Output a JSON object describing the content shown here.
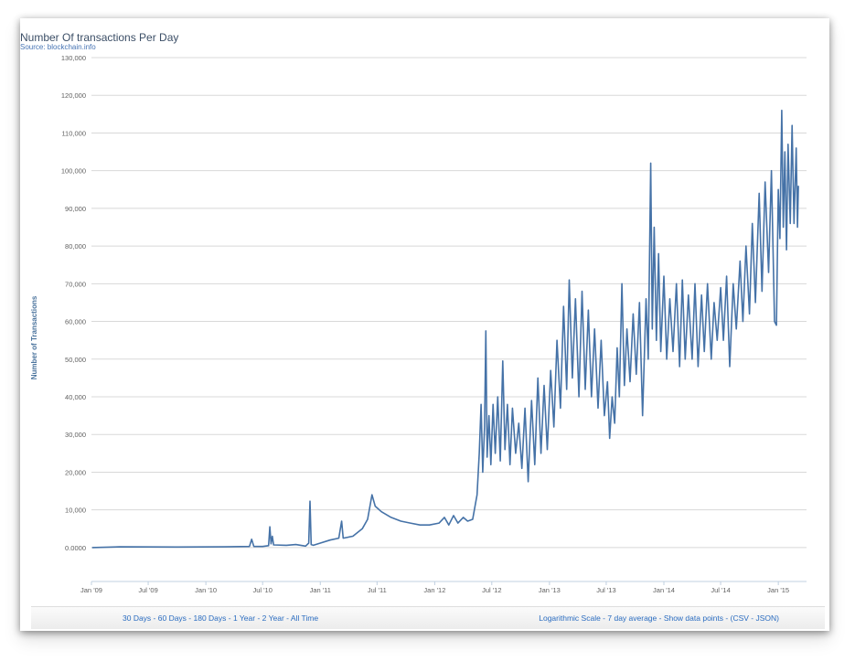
{
  "chart_data": {
    "type": "line",
    "title": "Number Of transactions Per Day",
    "subtitle": "Source: blockchain.info",
    "ylabel": "Number of Transactions",
    "xlabel": "",
    "ylim": [
      -9000,
      130000
    ],
    "grid": true,
    "y_ticks": [
      {
        "value": 0,
        "label": "0.0000"
      },
      {
        "value": 10000,
        "label": "10,000"
      },
      {
        "value": 20000,
        "label": "20,000"
      },
      {
        "value": 30000,
        "label": "30,000"
      },
      {
        "value": 40000,
        "label": "40,000"
      },
      {
        "value": 50000,
        "label": "50,000"
      },
      {
        "value": 60000,
        "label": "60,000"
      },
      {
        "value": 70000,
        "label": "70,000"
      },
      {
        "value": 80000,
        "label": "80,000"
      },
      {
        "value": 90000,
        "label": "90,000"
      },
      {
        "value": 100000,
        "label": "100,000"
      },
      {
        "value": 110000,
        "label": "110,000"
      },
      {
        "value": 120000,
        "label": "120,000"
      },
      {
        "value": 130000,
        "label": "130,000"
      }
    ],
    "x_ticks": [
      {
        "date": "2009-01-01",
        "label": "Jan '09"
      },
      {
        "date": "2009-07-01",
        "label": "Jul '09"
      },
      {
        "date": "2010-01-01",
        "label": "Jan '10"
      },
      {
        "date": "2010-07-01",
        "label": "Jul '10"
      },
      {
        "date": "2011-01-01",
        "label": "Jan '11"
      },
      {
        "date": "2011-07-01",
        "label": "Jul '11"
      },
      {
        "date": "2012-01-01",
        "label": "Jan '12"
      },
      {
        "date": "2012-07-01",
        "label": "Jul '12"
      },
      {
        "date": "2013-01-01",
        "label": "Jan '13"
      },
      {
        "date": "2013-07-01",
        "label": "Jul '13"
      },
      {
        "date": "2014-01-01",
        "label": "Jan '14"
      },
      {
        "date": "2014-07-01",
        "label": "Jul '14"
      },
      {
        "date": "2015-01-01",
        "label": "Jan '15"
      }
    ],
    "series": [
      {
        "color": "#4572a7",
        "points": [
          [
            "2009-01-03",
            0
          ],
          [
            "2009-04-01",
            200
          ],
          [
            "2009-10-01",
            150
          ],
          [
            "2010-03-01",
            200
          ],
          [
            "2010-05-20",
            300
          ],
          [
            "2010-05-27",
            2200
          ],
          [
            "2010-06-03",
            300
          ],
          [
            "2010-07-01",
            300
          ],
          [
            "2010-07-20",
            500
          ],
          [
            "2010-07-24",
            5500
          ],
          [
            "2010-07-28",
            1000
          ],
          [
            "2010-08-01",
            3000
          ],
          [
            "2010-08-05",
            700
          ],
          [
            "2010-09-15",
            600
          ],
          [
            "2010-10-15",
            800
          ],
          [
            "2010-11-15",
            400
          ],
          [
            "2010-11-25",
            1200
          ],
          [
            "2010-11-29",
            12300
          ],
          [
            "2010-12-03",
            800
          ],
          [
            "2010-12-10",
            600
          ],
          [
            "2011-01-01",
            1200
          ],
          [
            "2011-02-01",
            2000
          ],
          [
            "2011-03-01",
            2500
          ],
          [
            "2011-03-10",
            7000
          ],
          [
            "2011-03-15",
            2500
          ],
          [
            "2011-04-15",
            3000
          ],
          [
            "2011-05-15",
            5000
          ],
          [
            "2011-06-01",
            7500
          ],
          [
            "2011-06-15",
            14000
          ],
          [
            "2011-06-25",
            11000
          ],
          [
            "2011-07-15",
            9500
          ],
          [
            "2011-08-15",
            8000
          ],
          [
            "2011-09-15",
            7000
          ],
          [
            "2011-10-15",
            6500
          ],
          [
            "2011-11-15",
            6000
          ],
          [
            "2011-12-15",
            6000
          ],
          [
            "2012-01-15",
            6500
          ],
          [
            "2012-02-01",
            8000
          ],
          [
            "2012-02-15",
            6000
          ],
          [
            "2012-03-01",
            8500
          ],
          [
            "2012-03-15",
            6500
          ],
          [
            "2012-04-01",
            8000
          ],
          [
            "2012-04-15",
            7000
          ],
          [
            "2012-05-01",
            7500
          ],
          [
            "2012-05-15",
            14000
          ],
          [
            "2012-05-22",
            25000
          ],
          [
            "2012-05-28",
            38000
          ],
          [
            "2012-06-02",
            20000
          ],
          [
            "2012-06-08",
            32000
          ],
          [
            "2012-06-12",
            57500
          ],
          [
            "2012-06-16",
            24000
          ],
          [
            "2012-06-22",
            35000
          ],
          [
            "2012-06-28",
            22000
          ],
          [
            "2012-07-05",
            38000
          ],
          [
            "2012-07-12",
            25000
          ],
          [
            "2012-07-20",
            40000
          ],
          [
            "2012-07-28",
            23000
          ],
          [
            "2012-08-05",
            49500
          ],
          [
            "2012-08-12",
            26000
          ],
          [
            "2012-08-20",
            38000
          ],
          [
            "2012-08-28",
            22000
          ],
          [
            "2012-09-05",
            37000
          ],
          [
            "2012-09-15",
            25000
          ],
          [
            "2012-09-25",
            33000
          ],
          [
            "2012-10-05",
            21000
          ],
          [
            "2012-10-15",
            37000
          ],
          [
            "2012-10-25",
            17500
          ],
          [
            "2012-11-05",
            39000
          ],
          [
            "2012-11-15",
            22000
          ],
          [
            "2012-11-25",
            45000
          ],
          [
            "2012-12-05",
            25000
          ],
          [
            "2012-12-15",
            43000
          ],
          [
            "2012-12-25",
            26000
          ],
          [
            "2013-01-05",
            47000
          ],
          [
            "2013-01-15",
            32000
          ],
          [
            "2013-01-25",
            55000
          ],
          [
            "2013-02-05",
            37000
          ],
          [
            "2013-02-15",
            64000
          ],
          [
            "2013-02-25",
            42000
          ],
          [
            "2013-03-05",
            71000
          ],
          [
            "2013-03-15",
            45000
          ],
          [
            "2013-03-25",
            66000
          ],
          [
            "2013-04-05",
            40000
          ],
          [
            "2013-04-15",
            68000
          ],
          [
            "2013-04-25",
            42000
          ],
          [
            "2013-05-05",
            63000
          ],
          [
            "2013-05-15",
            40000
          ],
          [
            "2013-05-25",
            58000
          ],
          [
            "2013-06-05",
            37000
          ],
          [
            "2013-06-15",
            55000
          ],
          [
            "2013-06-25",
            35000
          ],
          [
            "2013-07-05",
            44000
          ],
          [
            "2013-07-12",
            29000
          ],
          [
            "2013-07-20",
            40000
          ],
          [
            "2013-07-28",
            33000
          ],
          [
            "2013-08-05",
            53000
          ],
          [
            "2013-08-12",
            40000
          ],
          [
            "2013-08-20",
            70000
          ],
          [
            "2013-08-28",
            43000
          ],
          [
            "2013-09-05",
            58000
          ],
          [
            "2013-09-15",
            44000
          ],
          [
            "2013-09-25",
            62000
          ],
          [
            "2013-10-05",
            46000
          ],
          [
            "2013-10-15",
            65000
          ],
          [
            "2013-10-25",
            35000
          ],
          [
            "2013-11-05",
            66000
          ],
          [
            "2013-11-12",
            50000
          ],
          [
            "2013-11-20",
            102000
          ],
          [
            "2013-11-25",
            58000
          ],
          [
            "2013-12-01",
            85000
          ],
          [
            "2013-12-08",
            55000
          ],
          [
            "2013-12-15",
            78000
          ],
          [
            "2013-12-22",
            52000
          ],
          [
            "2014-01-01",
            72000
          ],
          [
            "2014-01-10",
            50000
          ],
          [
            "2014-01-20",
            66000
          ],
          [
            "2014-01-30",
            52000
          ],
          [
            "2014-02-10",
            70000
          ],
          [
            "2014-02-20",
            48000
          ],
          [
            "2014-03-01",
            71000
          ],
          [
            "2014-03-10",
            50000
          ],
          [
            "2014-03-20",
            67000
          ],
          [
            "2014-04-01",
            50000
          ],
          [
            "2014-04-10",
            70000
          ],
          [
            "2014-04-20",
            48000
          ],
          [
            "2014-05-01",
            67000
          ],
          [
            "2014-05-10",
            52000
          ],
          [
            "2014-05-20",
            70000
          ],
          [
            "2014-06-01",
            50000
          ],
          [
            "2014-06-10",
            65000
          ],
          [
            "2014-06-20",
            55000
          ],
          [
            "2014-07-01",
            69000
          ],
          [
            "2014-07-10",
            55000
          ],
          [
            "2014-07-20",
            72000
          ],
          [
            "2014-07-30",
            48000
          ],
          [
            "2014-08-10",
            70000
          ],
          [
            "2014-08-20",
            58000
          ],
          [
            "2014-09-01",
            76000
          ],
          [
            "2014-09-10",
            60000
          ],
          [
            "2014-09-20",
            80000
          ],
          [
            "2014-10-01",
            62000
          ],
          [
            "2014-10-10",
            86000
          ],
          [
            "2014-10-20",
            65000
          ],
          [
            "2014-11-01",
            94000
          ],
          [
            "2014-11-10",
            68000
          ],
          [
            "2014-11-20",
            97000
          ],
          [
            "2014-12-01",
            73000
          ],
          [
            "2014-12-10",
            100000
          ],
          [
            "2014-12-20",
            60000
          ],
          [
            "2014-12-26",
            59000
          ],
          [
            "2015-01-01",
            95000
          ],
          [
            "2015-01-06",
            82000
          ],
          [
            "2015-01-12",
            116000
          ],
          [
            "2015-01-17",
            85000
          ],
          [
            "2015-01-22",
            105000
          ],
          [
            "2015-01-27",
            79000
          ],
          [
            "2015-02-01",
            107000
          ],
          [
            "2015-02-08",
            86000
          ],
          [
            "2015-02-14",
            112000
          ],
          [
            "2015-02-20",
            86000
          ],
          [
            "2015-02-27",
            106000
          ],
          [
            "2015-03-03",
            85000
          ],
          [
            "2015-03-06",
            96000
          ]
        ]
      }
    ]
  },
  "footer": {
    "range_links": [
      "30 Days",
      "60 Days",
      "180 Days",
      "1 Year",
      "2 Year",
      "All Time"
    ],
    "option_links": [
      "Logarithmic Scale",
      "7 day average",
      "Show data points"
    ],
    "export_prefix": "(",
    "export_links": [
      "CSV",
      "JSON"
    ],
    "export_suffix": ")"
  }
}
